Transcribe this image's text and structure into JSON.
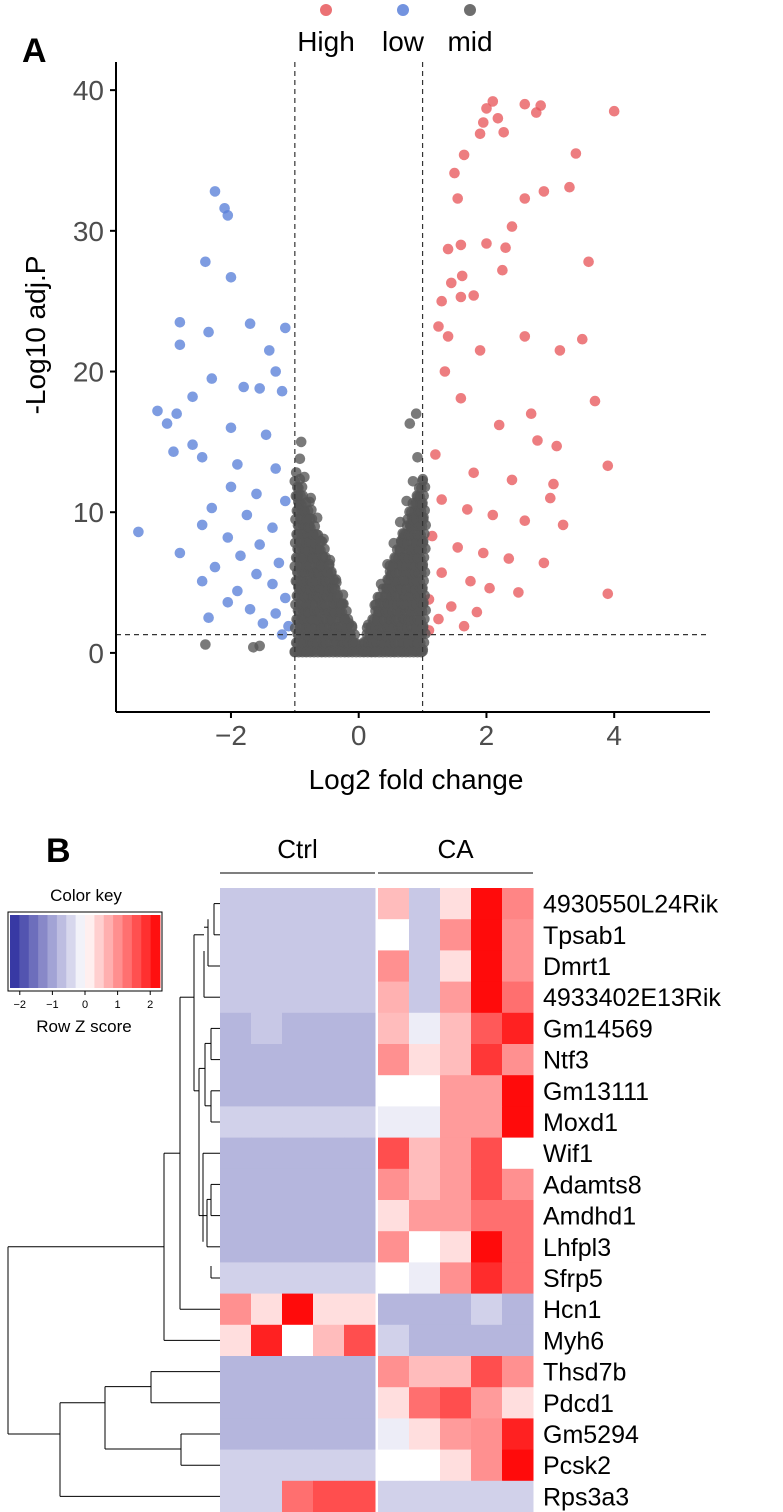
{
  "panel_a": {
    "label": "A",
    "chart_data": {
      "type": "scatter",
      "title": "",
      "xlabel": "Log2 fold change",
      "ylabel": "-Log10 adj.P",
      "xlim": [
        -3.8,
        5.5
      ],
      "ylim": [
        -4.2,
        42
      ],
      "xticks": [
        -2,
        0,
        2,
        4
      ],
      "yticks": [
        0,
        10,
        20,
        30,
        40
      ],
      "thresholds": {
        "log2fc": [
          -1,
          1
        ],
        "neg_log10_p": 1.3
      },
      "legend": {
        "placement": "top",
        "entries": [
          {
            "name": "High",
            "color": "#e8585c"
          },
          {
            "name": "low",
            "color": "#5a80d9"
          },
          {
            "name": "mid",
            "color": "#555555"
          }
        ]
      },
      "series": [
        {
          "name": "High",
          "color": "#e8585c",
          "points": [
            [
              4.0,
              38.5
            ],
            [
              3.9,
              4.2
            ],
            [
              3.9,
              13.3
            ],
            [
              3.6,
              27.8
            ],
            [
              3.7,
              17.9
            ],
            [
              3.5,
              22.3
            ],
            [
              3.4,
              35.5
            ],
            [
              2.6,
              39.0
            ],
            [
              2.85,
              38.9
            ],
            [
              2.78,
              38.4
            ],
            [
              2.1,
              39.2
            ],
            [
              2.0,
              38.7
            ],
            [
              1.9,
              36.9
            ],
            [
              2.27,
              37.0
            ],
            [
              2.18,
              38.0
            ],
            [
              1.95,
              37.7
            ],
            [
              3.3,
              33.1
            ],
            [
              2.9,
              32.8
            ],
            [
              2.6,
              32.3
            ],
            [
              1.65,
              35.4
            ],
            [
              1.5,
              34.1
            ],
            [
              1.55,
              32.3
            ],
            [
              2.4,
              30.3
            ],
            [
              2.3,
              28.8
            ],
            [
              2.0,
              29.1
            ],
            [
              1.6,
              29.0
            ],
            [
              1.4,
              28.7
            ],
            [
              2.25,
              27.2
            ],
            [
              1.62,
              26.8
            ],
            [
              1.45,
              26.3
            ],
            [
              1.3,
              25.0
            ],
            [
              1.6,
              25.3
            ],
            [
              1.8,
              25.4
            ],
            [
              1.25,
              23.2
            ],
            [
              2.6,
              22.5
            ],
            [
              3.15,
              21.5
            ],
            [
              1.35,
              20.0
            ],
            [
              1.6,
              18.1
            ],
            [
              2.2,
              16.2
            ],
            [
              2.8,
              15.1
            ],
            [
              3.1,
              14.7
            ],
            [
              1.2,
              14.1
            ],
            [
              1.8,
              12.8
            ],
            [
              2.4,
              12.3
            ],
            [
              3.05,
              12.0
            ],
            [
              1.3,
              10.9
            ],
            [
              1.7,
              10.2
            ],
            [
              2.1,
              9.8
            ],
            [
              2.6,
              9.4
            ],
            [
              3.2,
              9.1
            ],
            [
              1.15,
              8.3
            ],
            [
              1.55,
              7.5
            ],
            [
              1.95,
              7.1
            ],
            [
              2.35,
              6.7
            ],
            [
              2.9,
              6.4
            ],
            [
              1.3,
              5.7
            ],
            [
              1.75,
              5.1
            ],
            [
              2.05,
              4.6
            ],
            [
              2.5,
              4.3
            ],
            [
              1.1,
              3.8
            ],
            [
              1.45,
              3.3
            ],
            [
              1.85,
              2.9
            ],
            [
              1.25,
              2.4
            ],
            [
              1.65,
              1.9
            ],
            [
              1.1,
              1.6
            ],
            [
              3.0,
              11.0
            ],
            [
              2.7,
              17.0
            ],
            [
              1.9,
              21.5
            ],
            [
              1.4,
              22.5
            ]
          ]
        },
        {
          "name": "low",
          "color": "#5a80d9",
          "points": [
            [
              -2.25,
              32.8
            ],
            [
              -2.1,
              31.6
            ],
            [
              -2.05,
              31.1
            ],
            [
              -2.4,
              27.8
            ],
            [
              -2.0,
              26.7
            ],
            [
              -2.8,
              23.5
            ],
            [
              -1.7,
              23.4
            ],
            [
              -2.35,
              22.8
            ],
            [
              -1.15,
              23.1
            ],
            [
              -1.4,
              21.5
            ],
            [
              -2.8,
              21.9
            ],
            [
              -1.3,
              20.0
            ],
            [
              -2.3,
              19.5
            ],
            [
              -1.8,
              18.9
            ],
            [
              -1.55,
              18.8
            ],
            [
              -1.2,
              18.6
            ],
            [
              -2.6,
              18.2
            ],
            [
              -2.85,
              17.0
            ],
            [
              -3.15,
              17.2
            ],
            [
              -3.0,
              16.3
            ],
            [
              -2.0,
              16.0
            ],
            [
              -1.45,
              15.5
            ],
            [
              -2.6,
              14.8
            ],
            [
              -2.9,
              14.3
            ],
            [
              -2.45,
              13.9
            ],
            [
              -1.9,
              13.4
            ],
            [
              -1.3,
              13.1
            ],
            [
              -2.0,
              11.8
            ],
            [
              -1.6,
              11.3
            ],
            [
              -1.15,
              10.8
            ],
            [
              -2.3,
              10.3
            ],
            [
              -3.45,
              8.6
            ],
            [
              -1.75,
              9.8
            ],
            [
              -2.45,
              9.1
            ],
            [
              -1.35,
              8.9
            ],
            [
              -2.05,
              8.2
            ],
            [
              -1.55,
              7.7
            ],
            [
              -2.8,
              7.1
            ],
            [
              -1.85,
              6.9
            ],
            [
              -1.25,
              6.4
            ],
            [
              -2.25,
              6.1
            ],
            [
              -1.6,
              5.6
            ],
            [
              -2.45,
              5.1
            ],
            [
              -1.35,
              4.9
            ],
            [
              -1.9,
              4.4
            ],
            [
              -1.15,
              3.9
            ],
            [
              -2.05,
              3.6
            ],
            [
              -1.7,
              3.1
            ],
            [
              -1.3,
              2.8
            ],
            [
              -2.35,
              2.5
            ],
            [
              -1.5,
              2.1
            ],
            [
              -1.1,
              1.9
            ],
            [
              -1.2,
              1.3
            ]
          ]
        },
        {
          "name": "mid",
          "color": "#555555",
          "points": [
            [
              -0.9,
              15.0
            ],
            [
              -0.92,
              13.8
            ],
            [
              -0.85,
              12.5
            ],
            [
              -0.75,
              11.0
            ],
            [
              -0.65,
              9.6
            ],
            [
              -0.55,
              8.1
            ],
            [
              -0.45,
              6.6
            ],
            [
              -0.35,
              5.0
            ],
            [
              -0.25,
              3.5
            ],
            [
              -0.15,
              2.1
            ],
            [
              -0.05,
              0.6
            ],
            [
              0.05,
              0.6
            ],
            [
              0.15,
              2.0
            ],
            [
              0.25,
              3.4
            ],
            [
              0.35,
              4.9
            ],
            [
              0.45,
              6.3
            ],
            [
              0.55,
              7.8
            ],
            [
              0.65,
              9.3
            ],
            [
              0.75,
              10.8
            ],
            [
              0.85,
              12.2
            ],
            [
              0.92,
              13.9
            ],
            [
              0.8,
              16.3
            ],
            [
              0.9,
              17.0
            ],
            [
              -0.95,
              11.2
            ],
            [
              -0.7,
              7.5
            ],
            [
              -0.5,
              5.8
            ],
            [
              -0.3,
              3.0
            ],
            [
              0.3,
              2.7
            ],
            [
              0.5,
              5.5
            ],
            [
              0.7,
              8.2
            ],
            [
              -0.8,
              3.0
            ],
            [
              -0.6,
              2.0
            ],
            [
              -0.4,
              1.1
            ],
            [
              0.4,
              1.0
            ],
            [
              0.6,
              1.8
            ],
            [
              0.85,
              3.2
            ],
            [
              -2.4,
              0.6
            ],
            [
              -1.65,
              0.4
            ],
            [
              -1.55,
              0.5
            ],
            [
              -0.3,
              0.2
            ],
            [
              0.2,
              0.1
            ]
          ]
        }
      ]
    }
  },
  "panel_b": {
    "label": "B",
    "chart_data": {
      "type": "heatmap",
      "title": "",
      "groups": [
        {
          "name": "Ctrl",
          "columns": 5
        },
        {
          "name": "CA",
          "columns": 5
        }
      ],
      "rows": [
        "4930550L24Rik",
        "Tpsab1",
        "Dmrt1",
        "4933402E13Rik",
        "Gm14569",
        "Ntf3",
        "Gm13111",
        "Moxd1",
        "Wif1",
        "Adamts8",
        "Amdhd1",
        "Lhfpl3",
        "Sfrp5",
        "Hcn1",
        "Myh6",
        "Thsd7b",
        "Pdcd1",
        "Gm5294",
        "Pcsk2",
        "Rps3a3"
      ],
      "z_scores": [
        [
          -0.6,
          -0.6,
          -0.6,
          -0.6,
          -0.6,
          0.6,
          -0.6,
          0.3,
          2.2,
          1.1
        ],
        [
          -0.6,
          -0.6,
          -0.6,
          -0.6,
          -0.6,
          0.0,
          -0.6,
          1.0,
          2.2,
          1.0
        ],
        [
          -0.6,
          -0.6,
          -0.6,
          -0.6,
          -0.6,
          1.0,
          -0.6,
          0.3,
          2.2,
          1.0
        ],
        [
          -0.6,
          -0.6,
          -0.6,
          -0.6,
          -0.6,
          0.7,
          -0.6,
          0.9,
          2.2,
          1.3
        ],
        [
          -0.8,
          -0.6,
          -0.8,
          -0.8,
          -0.8,
          0.6,
          -0.2,
          0.6,
          1.5,
          2.0
        ],
        [
          -0.8,
          -0.8,
          -0.8,
          -0.8,
          -0.8,
          1.0,
          0.3,
          0.6,
          1.8,
          1.0
        ],
        [
          -0.8,
          -0.8,
          -0.8,
          -0.8,
          -0.8,
          0.0,
          0.0,
          0.9,
          0.9,
          2.2
        ],
        [
          -0.5,
          -0.5,
          -0.5,
          -0.5,
          -0.5,
          -0.2,
          -0.2,
          0.9,
          0.9,
          2.2
        ],
        [
          -0.8,
          -0.8,
          -0.8,
          -0.8,
          -0.8,
          1.6,
          0.6,
          0.9,
          1.6,
          0.0
        ],
        [
          -0.8,
          -0.8,
          -0.8,
          -0.8,
          -0.8,
          1.0,
          0.6,
          0.9,
          1.6,
          1.0
        ],
        [
          -0.8,
          -0.8,
          -0.8,
          -0.8,
          -0.8,
          0.3,
          0.9,
          0.9,
          1.3,
          1.3
        ],
        [
          -0.8,
          -0.8,
          -0.8,
          -0.8,
          -0.8,
          1.0,
          0.0,
          0.3,
          2.2,
          1.3
        ],
        [
          -0.5,
          -0.5,
          -0.5,
          -0.5,
          -0.5,
          0.0,
          -0.2,
          1.0,
          1.9,
          1.3
        ],
        [
          1.0,
          0.3,
          2.2,
          0.3,
          0.3,
          -0.8,
          -0.8,
          -0.8,
          -0.5,
          -0.8
        ],
        [
          0.3,
          2.0,
          0.0,
          0.6,
          1.6,
          -0.5,
          -0.8,
          -0.8,
          -0.8,
          -0.8
        ],
        [
          -0.8,
          -0.8,
          -0.8,
          -0.8,
          -0.8,
          1.0,
          0.6,
          0.6,
          1.6,
          1.0
        ],
        [
          -0.8,
          -0.8,
          -0.8,
          -0.8,
          -0.8,
          0.3,
          1.3,
          1.6,
          0.9,
          0.3
        ],
        [
          -0.8,
          -0.8,
          -0.8,
          -0.8,
          -0.8,
          -0.2,
          0.3,
          0.9,
          1.0,
          2.0
        ],
        [
          -0.5,
          -0.5,
          -0.5,
          -0.5,
          -0.5,
          0.0,
          0.0,
          0.3,
          1.0,
          2.2
        ],
        [
          -0.5,
          -0.5,
          1.3,
          1.6,
          1.6,
          -0.5,
          -0.5,
          -0.5,
          -0.5,
          -0.5
        ]
      ],
      "color_key": {
        "title": "Color key",
        "xlabel": "Row Z score",
        "ticks": [
          "−2",
          "−1",
          "0",
          "1",
          "2"
        ],
        "range": [
          -2.3,
          2.3
        ],
        "low_color": "#2b2c9e",
        "mid_color": "#ffffff",
        "high_color": "#ff0000"
      },
      "dendrogram": {
        "placement": "left"
      }
    }
  }
}
